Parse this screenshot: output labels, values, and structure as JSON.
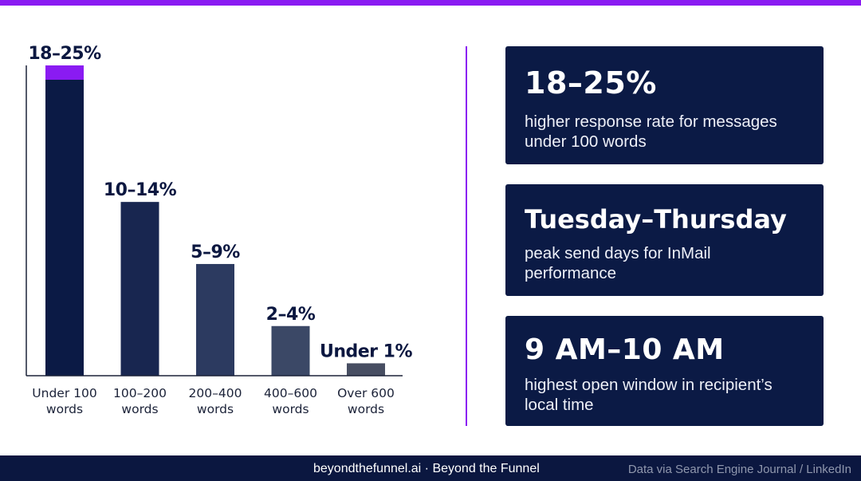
{
  "chart_data": {
    "type": "bar",
    "categories": [
      [
        "Under 100",
        "words"
      ],
      [
        "100–200",
        "words"
      ],
      [
        "200–400",
        "words"
      ],
      [
        "400–600",
        "words"
      ],
      [
        "Over 600",
        "words"
      ]
    ],
    "value_labels": [
      "18–25%",
      "10–14%",
      "5–9%",
      "2–4%",
      "Under 1%"
    ],
    "ranges": [
      [
        18,
        25
      ],
      [
        10,
        14
      ],
      [
        5,
        9
      ],
      [
        2,
        4
      ],
      [
        0,
        1
      ]
    ],
    "values": [
      25,
      14,
      9,
      4,
      1
    ],
    "range_low_highlight": 18,
    "ylim": [
      0,
      25
    ],
    "grid": false,
    "bar_colors": [
      "#0b1a45",
      "#182650",
      "#2c3a60",
      "#3b4866",
      "#474e62"
    ],
    "highlight_color": "#8a1bf2"
  },
  "stats": [
    {
      "headline": "18–25%",
      "description": "higher response rate for messages under 100 words"
    },
    {
      "headline": "Tuesday–Thursday",
      "description": "peak send days for InMail performance"
    },
    {
      "headline": "9 AM–10 AM",
      "description": "highest open window in recipient’s local time"
    }
  ],
  "footer": {
    "brand": "beyondthefunnel.ai · Beyond the Funnel",
    "source": "Data via Search Engine Journal / LinkedIn"
  },
  "colors": {
    "accent": "#8a1bf2",
    "navy": "#0b1a45",
    "footer_bg": "#0b1740"
  }
}
